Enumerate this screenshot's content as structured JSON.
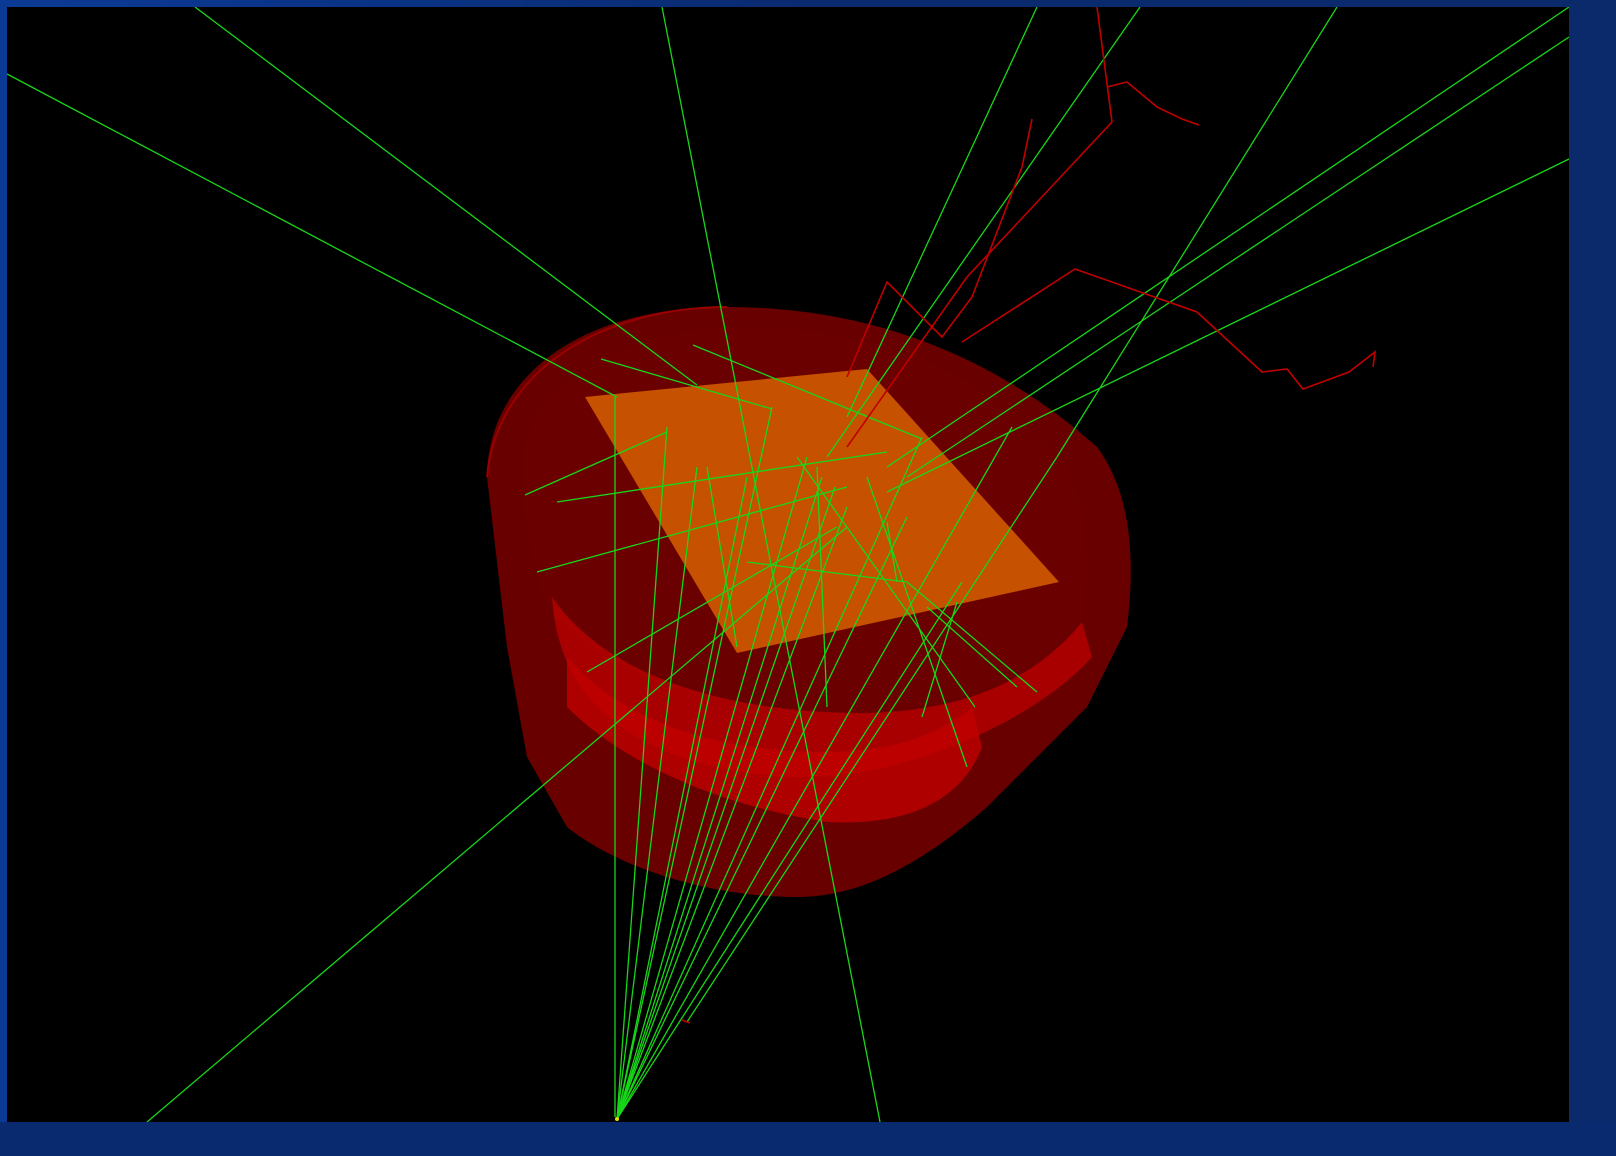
{
  "window": {
    "title": ""
  },
  "scene": {
    "background_color": "#000000",
    "frame_color": "#0b2a6b",
    "colors": {
      "detector_outer": "#8a0000",
      "detector_inner": "#b00000",
      "crystal_plate": "#d06000",
      "gamma_tracks": "#19d619",
      "charged_tracks": "#c00000"
    }
  }
}
